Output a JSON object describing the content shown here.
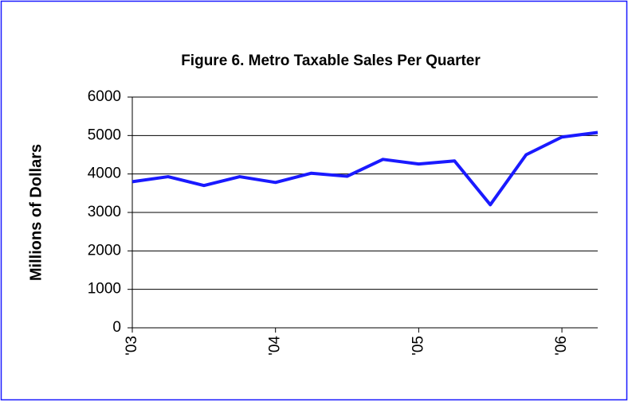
{
  "chart_data": {
    "type": "line",
    "title": "Figure 6. Metro Taxable Sales Per Quarter",
    "y_label": "Millions of Dollars",
    "categories": [
      "'03",
      null,
      null,
      null,
      "'04",
      null,
      null,
      null,
      "'05",
      null,
      null,
      null,
      "'06",
      null
    ],
    "values": [
      3800,
      3930,
      3700,
      3930,
      3780,
      4020,
      3940,
      4380,
      4260,
      4340,
      3200,
      4500,
      4960,
      5080
    ],
    "color": "#1a1aff",
    "ylim": [
      0,
      6000
    ],
    "yticks": [
      0,
      1000,
      2000,
      3000,
      4000,
      5000,
      6000
    ],
    "grid": true
  }
}
